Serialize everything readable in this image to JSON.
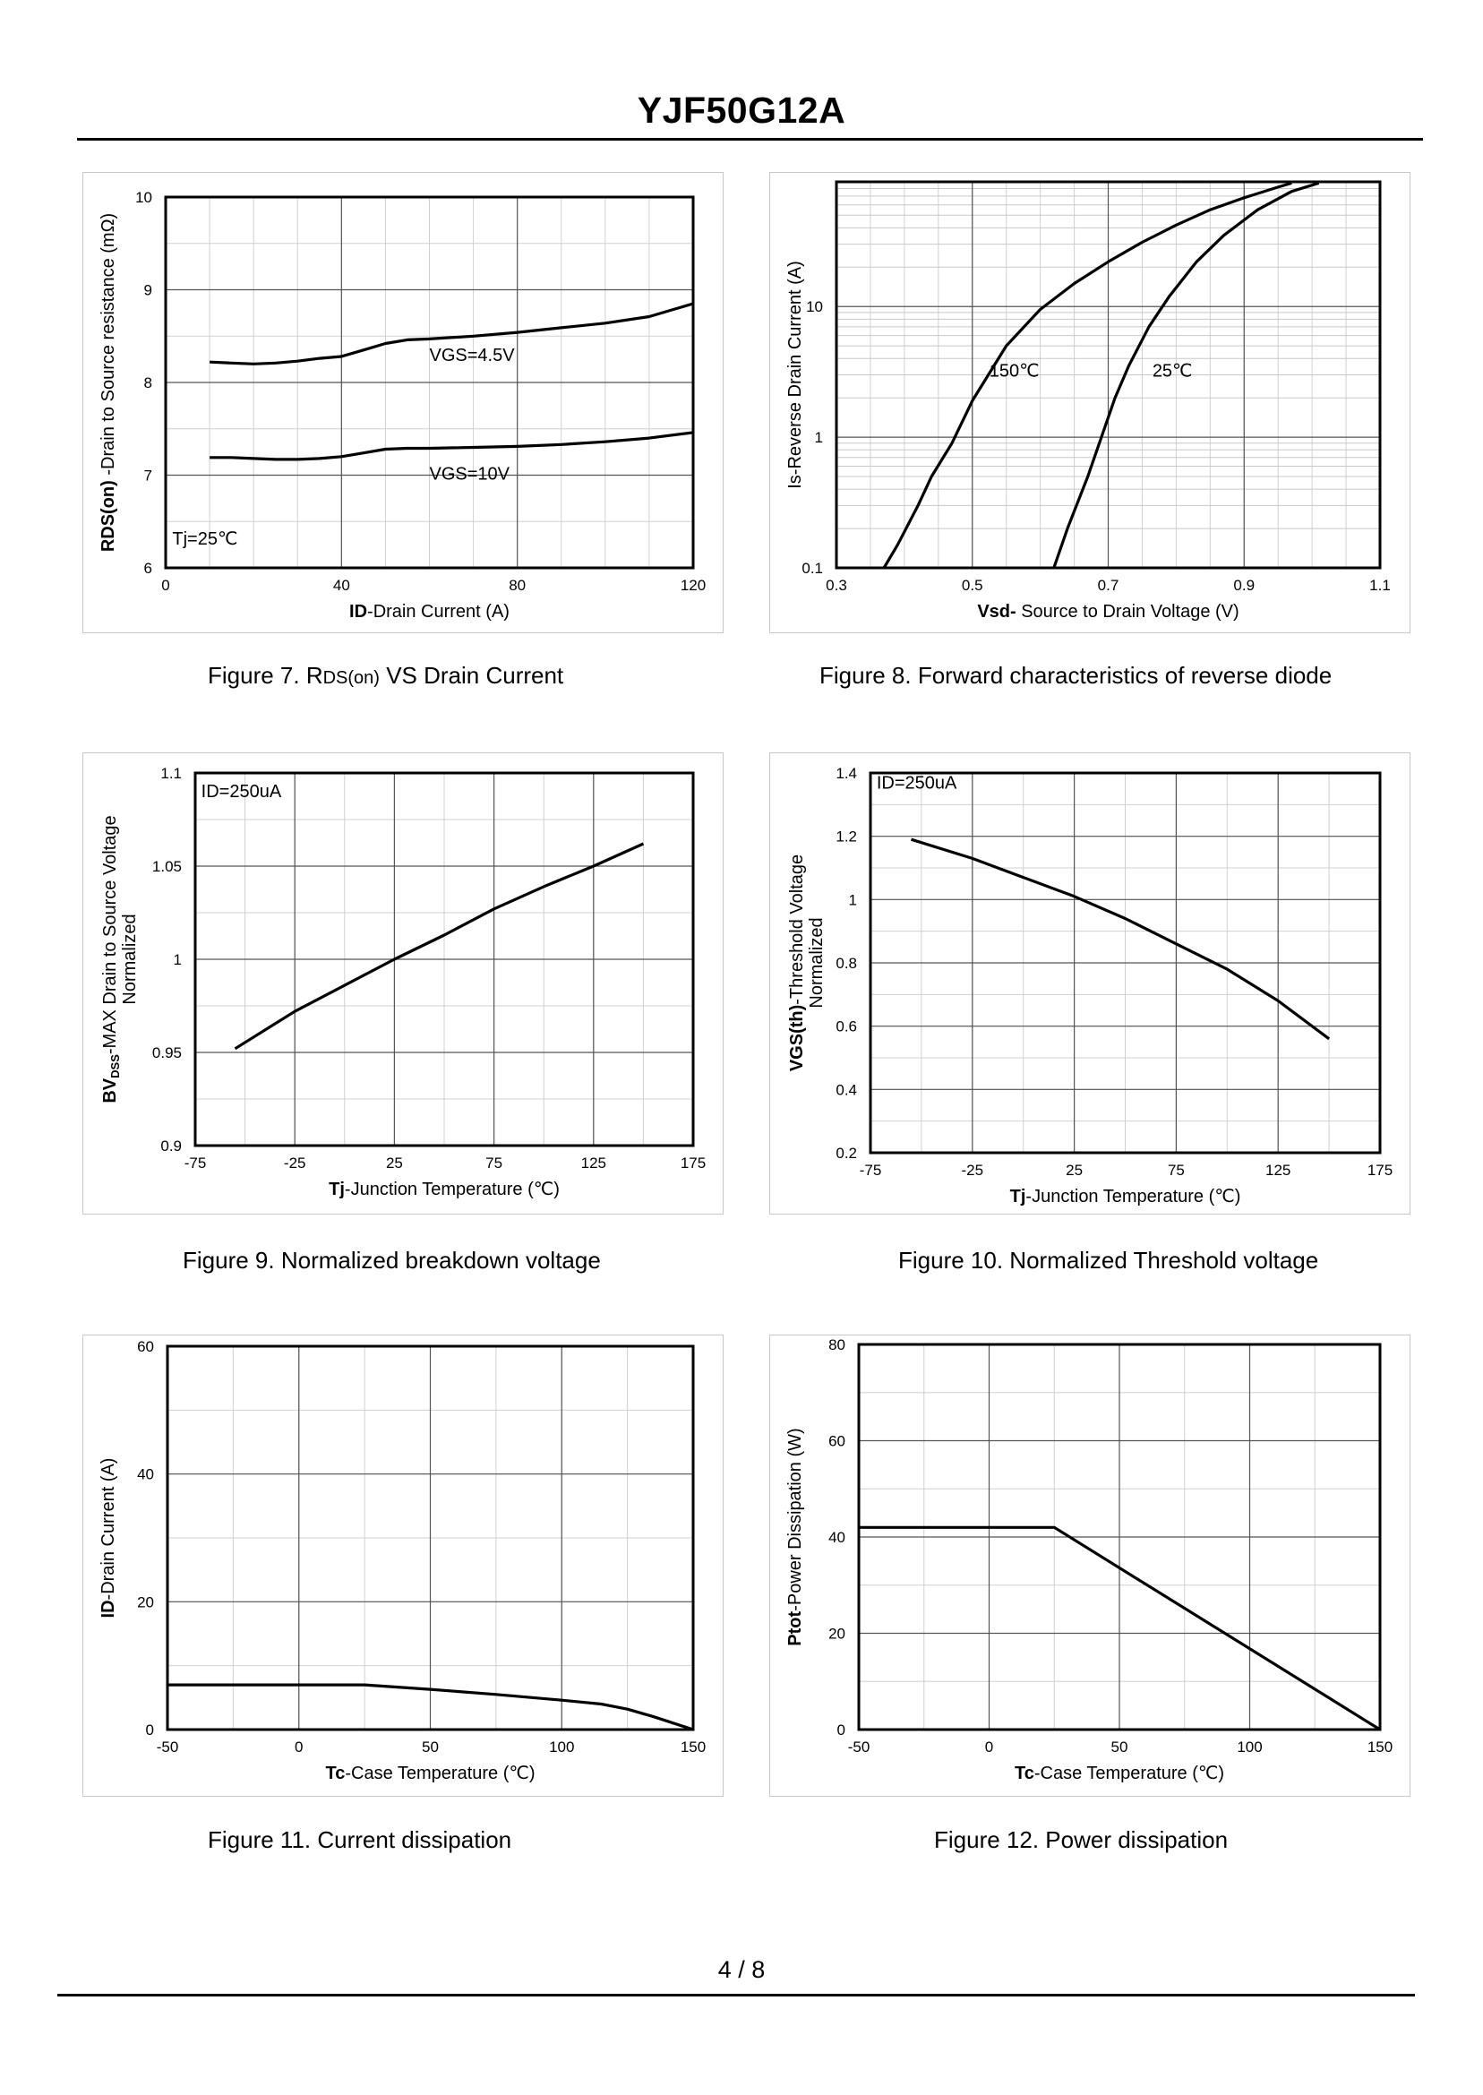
{
  "document": {
    "title": "YJF50G12A",
    "page": "4 / 8"
  },
  "captions": {
    "fig7": {
      "prefix": "Figure 7.  R",
      "sub": "DS(on)",
      "suffix": " VS Drain Current"
    },
    "fig8": "Figure 8.  Forward characteristics of reverse diode",
    "fig9": "Figure 9.  Normalized breakdown voltage",
    "fig10": "Figure 10.  Normalized Threshold voltage",
    "fig11": "Figure 11.  Current dissipation",
    "fig12": "Figure 12.  Power dissipation"
  },
  "chart_data": [
    {
      "id": "fig7",
      "type": "line",
      "title": "Figure 7. RDS(on) VS Drain Current",
      "xlabel": {
        "bold": "ID",
        "rest": "-Drain Current (A)"
      },
      "ylabel": {
        "bold": "RDS(on)",
        "rest": " -Drain to Source resistance (mΩ)"
      },
      "xlim": [
        0,
        120
      ],
      "ylim": [
        6,
        10
      ],
      "xticks": [
        0,
        40,
        80,
        120
      ],
      "yticks": [
        6,
        7,
        8,
        9,
        10
      ],
      "xminor": 10,
      "yminor": 0.5,
      "series": [
        {
          "name": "VGS=4.5V",
          "x": [
            10,
            15,
            20,
            25,
            30,
            35,
            40,
            45,
            50,
            55,
            60,
            70,
            80,
            90,
            100,
            110,
            120
          ],
          "y": [
            8.22,
            8.21,
            8.2,
            8.21,
            8.23,
            8.26,
            8.28,
            8.35,
            8.42,
            8.46,
            8.47,
            8.5,
            8.54,
            8.59,
            8.64,
            8.71,
            8.85
          ]
        },
        {
          "name": "VGS=10V",
          "x": [
            10,
            15,
            20,
            25,
            30,
            35,
            40,
            45,
            50,
            55,
            60,
            70,
            80,
            90,
            100,
            110,
            120
          ],
          "y": [
            7.19,
            7.19,
            7.18,
            7.17,
            7.17,
            7.18,
            7.2,
            7.24,
            7.28,
            7.29,
            7.29,
            7.3,
            7.31,
            7.33,
            7.36,
            7.4,
            7.46
          ]
        }
      ],
      "annotations": [
        {
          "text": "VGS=4.5V",
          "x": 60,
          "y": 8.23
        },
        {
          "text": "VGS=10V",
          "x": 60,
          "y": 6.95
        },
        {
          "text": "Tj=25℃",
          "x": 1.5,
          "y": 6.25
        }
      ]
    },
    {
      "id": "fig8",
      "type": "line",
      "title": "Figure 8. Forward characteristics of reverse diode",
      "xlabel": {
        "bold": "Vsd-",
        "rest": " Source to Drain Voltage (V)"
      },
      "ylabel": {
        "bold": "",
        "rest": "Is-Reverse  Drain Current (A)"
      },
      "xlim": [
        0.3,
        1.1
      ],
      "ylim": [
        0.1,
        90
      ],
      "yscale": "log",
      "xticks": [
        0.3,
        0.5,
        0.7,
        0.9,
        1.1
      ],
      "yticks": [
        0.1,
        1,
        10
      ],
      "xminor": 0.05,
      "series": [
        {
          "name": "150℃",
          "x": [
            0.37,
            0.39,
            0.42,
            0.44,
            0.47,
            0.5,
            0.55,
            0.6,
            0.65,
            0.7,
            0.75,
            0.8,
            0.85,
            0.9,
            0.95,
            0.97
          ],
          "y": [
            0.1,
            0.15,
            0.3,
            0.5,
            0.9,
            1.9,
            5,
            9.5,
            15,
            22,
            31,
            42,
            55,
            68,
            82,
            88
          ]
        },
        {
          "name": "25℃",
          "x": [
            0.62,
            0.64,
            0.67,
            0.69,
            0.71,
            0.73,
            0.76,
            0.79,
            0.83,
            0.87,
            0.92,
            0.97,
            1.01
          ],
          "y": [
            0.1,
            0.2,
            0.5,
            1,
            2,
            3.5,
            7,
            12,
            22,
            35,
            55,
            76,
            88
          ]
        }
      ],
      "annotations": [
        {
          "text": "150℃",
          "x": 0.525,
          "y": 2.9
        },
        {
          "text": "25℃",
          "x": 0.765,
          "y": 2.9
        }
      ]
    },
    {
      "id": "fig9",
      "type": "line",
      "title": "Figure 9. Normalized breakdown voltage",
      "xlabel": {
        "bold": "Tj",
        "rest": "-Junction  Temperature (℃)"
      },
      "ylabel": {
        "bold": "BV",
        "sub": "DSS",
        "rest": "-MAX Drain to Source Voltage",
        "line2": "Normalized"
      },
      "xlim": [
        -75,
        175
      ],
      "ylim": [
        0.9,
        1.1
      ],
      "xticks": [
        -75,
        -25,
        25,
        75,
        125,
        175
      ],
      "yticks": [
        0.9,
        0.95,
        1,
        1.05,
        1.1
      ],
      "xminor": 25,
      "yminor": 0.025,
      "series": [
        {
          "name": "BVDSS",
          "x": [
            -55,
            -25,
            0,
            25,
            50,
            75,
            100,
            125,
            150
          ],
          "y": [
            0.952,
            0.972,
            0.986,
            1.0,
            1.013,
            1.027,
            1.039,
            1.05,
            1.062
          ]
        }
      ],
      "annotations": [
        {
          "text": "ID=250uA",
          "x": -72,
          "y": 1.087
        }
      ]
    },
    {
      "id": "fig10",
      "type": "line",
      "title": "Figure 10. Normalized Threshold voltage",
      "xlabel": {
        "bold": "Tj",
        "rest": "-Junction  Temperature (℃)"
      },
      "ylabel": {
        "bold": "VGS(th)",
        "rest": "-Threshold  Voltage",
        "line2": "Normalized"
      },
      "xlim": [
        -75,
        175
      ],
      "ylim": [
        0.2,
        1.4
      ],
      "xticks": [
        -75,
        -25,
        25,
        75,
        125,
        175
      ],
      "yticks": [
        0.2,
        0.4,
        0.6,
        0.8,
        1,
        1.2,
        1.4
      ],
      "xminor": 25,
      "yminor": 0.1,
      "series": [
        {
          "name": "VGS(th)",
          "x": [
            -55,
            -25,
            0,
            25,
            50,
            75,
            100,
            125,
            150
          ],
          "y": [
            1.19,
            1.13,
            1.07,
            1.01,
            0.94,
            0.86,
            0.78,
            0.68,
            0.56
          ]
        }
      ],
      "annotations": [
        {
          "text": "ID=250uA",
          "x": -72,
          "y": 1.35
        }
      ]
    },
    {
      "id": "fig11",
      "type": "line",
      "title": "Figure 11. Current dissipation",
      "xlabel": {
        "bold": "Tc",
        "rest": "-Case Temperature (℃)"
      },
      "ylabel": {
        "bold": "ID",
        "rest": "-Drain Current (A)"
      },
      "xlim": [
        -50,
        150
      ],
      "ylim": [
        0,
        60
      ],
      "xticks": [
        -50,
        0,
        50,
        100,
        150
      ],
      "yticks": [
        0,
        20,
        40,
        60
      ],
      "xminor": 25,
      "yminor": 10,
      "series": [
        {
          "name": "ID",
          "x": [
            -50,
            25,
            50,
            75,
            100,
            115,
            125,
            135,
            150
          ],
          "y": [
            7,
            7,
            6.3,
            5.5,
            4.6,
            4,
            3.2,
            2,
            0
          ]
        }
      ],
      "annotations": []
    },
    {
      "id": "fig12",
      "type": "line",
      "title": "Figure 12. Power dissipation",
      "xlabel": {
        "bold": "Tc",
        "rest": "-Case Temperature (℃)"
      },
      "ylabel": {
        "bold": "Ptot",
        "rest": "-Power Dissipation (W)"
      },
      "xlim": [
        -50,
        150
      ],
      "ylim": [
        0,
        80
      ],
      "xticks": [
        -50,
        0,
        50,
        100,
        150
      ],
      "yticks": [
        0,
        20,
        40,
        60,
        80
      ],
      "xminor": 25,
      "yminor": 10,
      "series": [
        {
          "name": "Ptot",
          "x": [
            -50,
            25,
            150
          ],
          "y": [
            42,
            42,
            0
          ]
        }
      ],
      "annotations": []
    }
  ]
}
